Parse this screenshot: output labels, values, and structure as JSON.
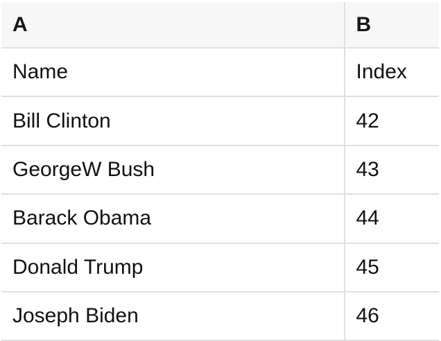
{
  "table": {
    "column_headers": [
      {
        "label": "A"
      },
      {
        "label": "B"
      }
    ],
    "rows": [
      {
        "cells": [
          "Name",
          "Index"
        ]
      },
      {
        "cells": [
          "Bill Clinton",
          "42"
        ]
      },
      {
        "cells": [
          "GeorgeW Bush",
          "43"
        ]
      },
      {
        "cells": [
          "Barack Obama",
          "44"
        ]
      },
      {
        "cells": [
          "Donald Trump",
          "45"
        ]
      },
      {
        "cells": [
          "Joseph Biden",
          "46"
        ]
      }
    ],
    "colors": {
      "header_background": "#f7f7f7",
      "grid_border": "#e0e0e0",
      "text": "#111111",
      "background": "#ffffff"
    }
  }
}
